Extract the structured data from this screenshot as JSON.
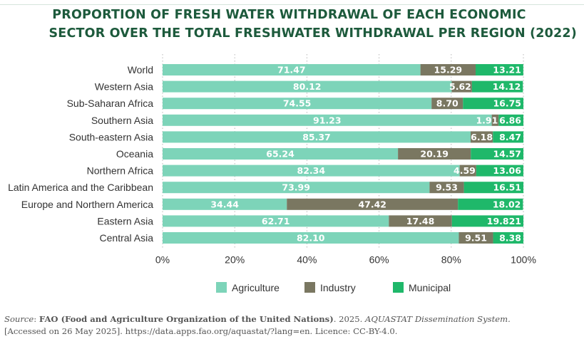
{
  "chart_data": {
    "type": "bar",
    "orientation": "horizontal",
    "stacked": true,
    "title_line1": "PROPORTION OF FRESH WATER WITHDRAWAL OF EACH ECONOMIC",
    "title_line2": "SECTOR OVER THE TOTAL FRESHWATER WITHDRAWAL PER REGION (2022)",
    "categories": [
      "World",
      "Western Asia",
      "Sub-Saharan Africa",
      "Southern Asia",
      "South-eastern Asia",
      "Oceania",
      "Northern Africa",
      "Latin America and the Caribbean",
      "Europe and Northern America",
      "Eastern Asia",
      "Central Asia"
    ],
    "series": [
      {
        "name": "Agriculture",
        "color": "#7dd4b9",
        "values": [
          71.47,
          80.12,
          74.55,
          91.23,
          85.37,
          65.24,
          82.34,
          73.99,
          34.44,
          62.71,
          82.1
        ],
        "labels": [
          "71.47",
          "80.12",
          "74.55",
          "91.23",
          "85.37",
          "65.24",
          "82.34",
          "73.99",
          "34.44",
          "62.71",
          "82.10"
        ]
      },
      {
        "name": "Industry",
        "color": "#7a7761",
        "values": [
          15.29,
          5.62,
          8.7,
          1.91,
          6.18,
          20.19,
          4.59,
          9.53,
          47.42,
          17.48,
          9.51
        ],
        "labels": [
          "15.29",
          "5.62",
          "8.70",
          "1.91",
          "6.18",
          "20.19",
          "4.59",
          "9.53",
          "47.42",
          "17.48",
          "9.51"
        ]
      },
      {
        "name": "Municipal",
        "color": "#1fb86a",
        "values": [
          13.21,
          14.12,
          16.75,
          6.86,
          8.47,
          14.57,
          13.06,
          16.51,
          18.02,
          19.821,
          8.38
        ],
        "labels": [
          "13.21",
          "14.12",
          "16.75",
          "6.86",
          "8.47",
          "14.57",
          "13.06",
          "16.51",
          "18.02",
          "19.821",
          "8.38"
        ]
      }
    ],
    "xlim": [
      0,
      100
    ],
    "xticks": [
      "0%",
      "20%",
      "40%",
      "60%",
      "80%",
      "100%"
    ],
    "grid": "vertical dotted",
    "legend_position": "bottom-center"
  },
  "source": {
    "prefix": "Source",
    "sep": ": ",
    "org": "FAO (Food and Agriculture Organization of the United Nations)",
    "year": ". 2025. ",
    "system": "AQUASTAT Dissemination System.",
    "line2": "[Accessed on 26 May 2025]. https://data.apps.fao.org/aquastat/?lang=en. Licence: CC-BY-4.0."
  }
}
